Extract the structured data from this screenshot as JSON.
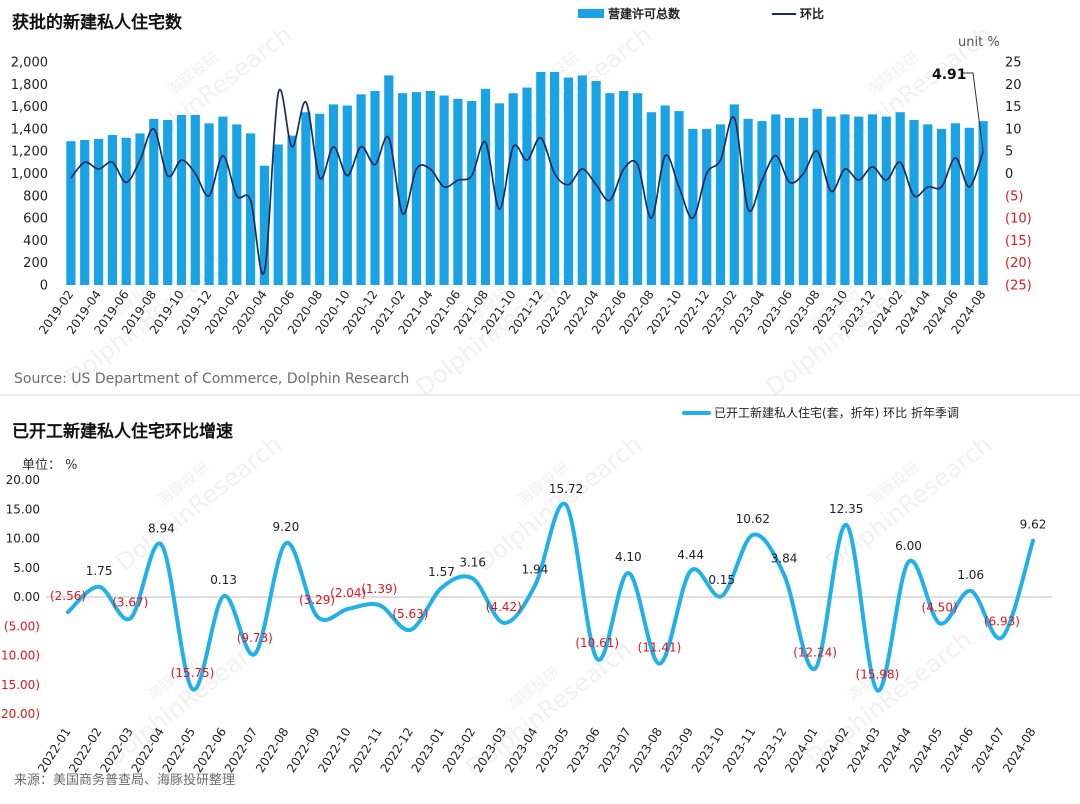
{
  "colors": {
    "bar": "#1AA3E4",
    "ratio_line": "#1C2B5C",
    "starts_line": "#22B0E8",
    "negative": "#E5141B",
    "text": "#222222",
    "zero_line": "#BFBFBF",
    "separator": "#D9D9D9"
  },
  "watermark": {
    "cn": "海豚投研",
    "en": "DolphinResearch"
  },
  "chart_data": [
    {
      "type": "bar",
      "title": "获批的新建私人住宅数",
      "unit_label": "unit %",
      "x": [
        "2019-02",
        "2019-03",
        "2019-04",
        "2019-05",
        "2019-06",
        "2019-07",
        "2019-08",
        "2019-09",
        "2019-10",
        "2019-11",
        "2019-12",
        "2020-01",
        "2020-02",
        "2020-03",
        "2020-04",
        "2020-05",
        "2020-06",
        "2020-07",
        "2020-08",
        "2020-09",
        "2020-10",
        "2020-11",
        "2020-12",
        "2021-01",
        "2021-02",
        "2021-03",
        "2021-04",
        "2021-05",
        "2021-06",
        "2021-07",
        "2021-08",
        "2021-09",
        "2021-10",
        "2021-11",
        "2021-12",
        "2022-01",
        "2022-02",
        "2022-03",
        "2022-04",
        "2022-05",
        "2022-06",
        "2022-07",
        "2022-08",
        "2022-09",
        "2022-10",
        "2022-11",
        "2022-12",
        "2023-01",
        "2023-02",
        "2023-03",
        "2023-04",
        "2023-05",
        "2023-06",
        "2023-07",
        "2023-08",
        "2023-09",
        "2023-10",
        "2023-11",
        "2023-12",
        "2024-01",
        "2024-02",
        "2024-03",
        "2024-04",
        "2024-05",
        "2024-06",
        "2024-07",
        "2024-08"
      ],
      "series": [
        {
          "name": "营建许可总数",
          "type": "bar",
          "axis": "left",
          "values": [
            1290,
            1300,
            1310,
            1345,
            1320,
            1360,
            1490,
            1480,
            1525,
            1525,
            1450,
            1510,
            1440,
            1360,
            1070,
            1260,
            1340,
            1550,
            1535,
            1620,
            1610,
            1710,
            1740,
            1880,
            1720,
            1730,
            1740,
            1700,
            1670,
            1650,
            1760,
            1630,
            1720,
            1770,
            1910,
            1910,
            1860,
            1880,
            1830,
            1720,
            1740,
            1720,
            1550,
            1610,
            1560,
            1400,
            1400,
            1440,
            1620,
            1490,
            1470,
            1530,
            1500,
            1500,
            1580,
            1510,
            1530,
            1510,
            1530,
            1510,
            1550,
            1480,
            1440,
            1400,
            1450,
            1410,
            1470
          ]
        },
        {
          "name": "环比",
          "type": "line",
          "axis": "right",
          "values": [
            -1,
            2.5,
            1,
            2.5,
            -2,
            3,
            10,
            -0.5,
            3,
            0,
            -5,
            4,
            -5,
            -6,
            -22,
            18,
            6,
            16,
            -1,
            6,
            -0.5,
            6,
            2,
            8,
            -9,
            1,
            1,
            -3,
            -1.5,
            -0.5,
            7,
            -8,
            6,
            3,
            8,
            0,
            -2.5,
            1,
            -2.5,
            -6,
            1,
            2,
            -10,
            4,
            -3,
            -10,
            0,
            3,
            12.5,
            -8,
            -1.5,
            4,
            -2,
            0,
            5,
            -4,
            1,
            -1.5,
            1.5,
            -1.5,
            2.5,
            -5,
            -3,
            -3,
            3.5,
            -3,
            4.91
          ]
        }
      ],
      "ylim_left": [
        0,
        2000
      ],
      "ylim_right": [
        -25,
        25
      ],
      "yticks_left": [
        "2,000",
        "1,800",
        "1,600",
        "1,400",
        "1,200",
        "1,000",
        "800",
        "600",
        "400",
        "200",
        "0"
      ],
      "yticks_right": [
        "25",
        "20",
        "15",
        "10",
        "5",
        "0",
        "(5)",
        "(10)",
        "(15)",
        "(20)",
        "(25)"
      ],
      "annotation_label": "4.91",
      "legend": "top",
      "grid": false,
      "source": "Source: US Department of Commerce, Dolphin Research"
    },
    {
      "type": "line",
      "title": "已开工新建私人住宅环比增速",
      "unit_label": "单位： %",
      "x": [
        "2022-01",
        "2022-02",
        "2022-03",
        "2022-04",
        "2022-05",
        "2022-06",
        "2022-07",
        "2022-08",
        "2022-09",
        "2022-10",
        "2022-11",
        "2022-12",
        "2023-01",
        "2023-02",
        "2023-03",
        "2023-04",
        "2023-05",
        "2023-06",
        "2023-07",
        "2023-08",
        "2023-09",
        "2023-10",
        "2023-11",
        "2023-12",
        "2024-01",
        "2024-02",
        "2024-03",
        "2024-04",
        "2024-05",
        "2024-06",
        "2024-07",
        "2024-08"
      ],
      "series": [
        {
          "name": "已开工新建私人住宅(套，折年) 环比 折年季调",
          "values": [
            -2.56,
            1.75,
            -3.67,
            8.94,
            -15.75,
            0.13,
            -9.73,
            9.2,
            -3.29,
            -2.04,
            -1.39,
            -5.63,
            1.57,
            3.16,
            -4.42,
            1.94,
            15.72,
            -10.61,
            4.1,
            -11.41,
            4.44,
            0.15,
            10.62,
            3.84,
            -12.24,
            12.35,
            -15.98,
            6.0,
            -4.5,
            1.06,
            -6.93,
            9.62
          ]
        }
      ],
      "data_labels": [
        "(2.56)",
        "1.75",
        "(3.67)",
        "8.94",
        "(15.75)",
        "0.13",
        "(9.73)",
        "9.20",
        "(3.29)",
        "(2.04)",
        "(1.39)",
        "(5.63)",
        "1.57",
        "3.16",
        "(4.42)",
        "1.94",
        "15.72",
        "(10.61)",
        "4.10",
        "(11.41)",
        "4.44",
        "0.15",
        "10.62",
        "3.84",
        "(12.24)",
        "12.35",
        "(15.98)",
        "6.00",
        "(4.50)",
        "1.06",
        "(6.93)",
        "9.62"
      ],
      "ylim": [
        -20,
        20
      ],
      "yticks": [
        "20.00",
        "15.00",
        "10.00",
        "5.00",
        "0.00",
        "(5.00)",
        "(10.00)",
        "(15.00)",
        "(20.00)"
      ],
      "legend": "top-right",
      "grid": false,
      "source": "来源：美国商务普查局、海豚投研整理"
    }
  ]
}
